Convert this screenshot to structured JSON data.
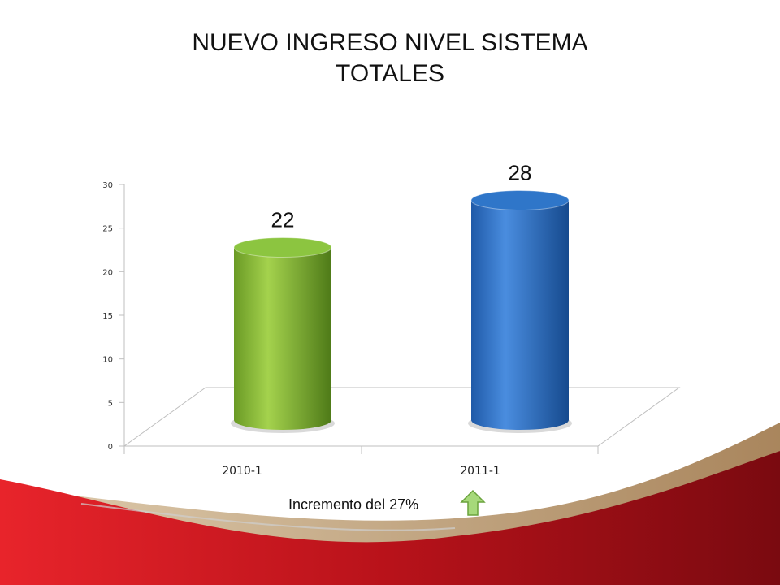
{
  "slide": {
    "title_line1": "NUEVO INGRESO NIVEL SISTEMA",
    "title_line2": "TOTALES",
    "note": "Incremento del 27%",
    "note_icon": "up-arrow-icon"
  },
  "colors": {
    "bar1": "#8cc540",
    "bar2": "#2f76c9",
    "footer_red": "#b11219",
    "footer_tan": "#b08a5a",
    "arrow_green": "#a6d97a"
  },
  "chart_data": {
    "type": "bar",
    "style": "3d-cylinder",
    "categories": [
      "2010-1",
      "2011-1"
    ],
    "values": [
      22,
      28
    ],
    "data_labels": [
      "22",
      "28"
    ],
    "yticks": [
      "0",
      "5",
      "10",
      "15",
      "20",
      "25",
      "30"
    ],
    "ylim": [
      0,
      30
    ],
    "grid": false,
    "legend": "none"
  }
}
